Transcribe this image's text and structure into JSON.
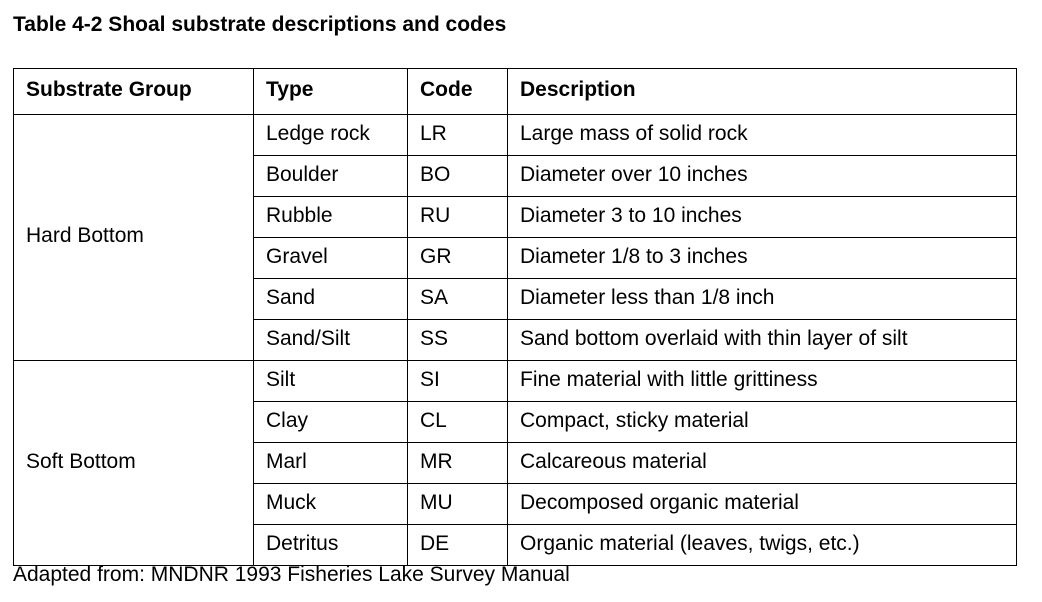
{
  "caption": "Table 4-2 Shoal substrate descriptions and codes",
  "columns": [
    "Substrate Group",
    "Type",
    "Code",
    "Description"
  ],
  "groups": [
    {
      "name": "Hard Bottom",
      "rows": [
        {
          "type": "Ledge rock",
          "code": "LR",
          "description": "Large mass of solid rock"
        },
        {
          "type": "Boulder",
          "code": "BO",
          "description": "Diameter over 10 inches"
        },
        {
          "type": "Rubble",
          "code": "RU",
          "description": "Diameter 3 to 10 inches"
        },
        {
          "type": "Gravel",
          "code": "GR",
          "description": "Diameter 1/8 to 3 inches"
        },
        {
          "type": "Sand",
          "code": "SA",
          "description": "Diameter less than 1/8 inch"
        },
        {
          "type": "Sand/Silt",
          "code": "SS",
          "description": "Sand bottom overlaid with thin layer of silt"
        }
      ]
    },
    {
      "name": "Soft Bottom",
      "rows": [
        {
          "type": "Silt",
          "code": "SI",
          "description": "Fine material with little grittiness"
        },
        {
          "type": "Clay",
          "code": "CL",
          "description": "Compact, sticky material"
        },
        {
          "type": "Marl",
          "code": "MR",
          "description": "Calcareous material"
        },
        {
          "type": "Muck",
          "code": "MU",
          "description": "Decomposed organic material"
        },
        {
          "type": "Detritus",
          "code": "DE",
          "description": "Organic material (leaves, twigs, etc.)"
        }
      ]
    }
  ],
  "source": "Adapted from: MNDNR 1993 Fisheries Lake Survey Manual"
}
